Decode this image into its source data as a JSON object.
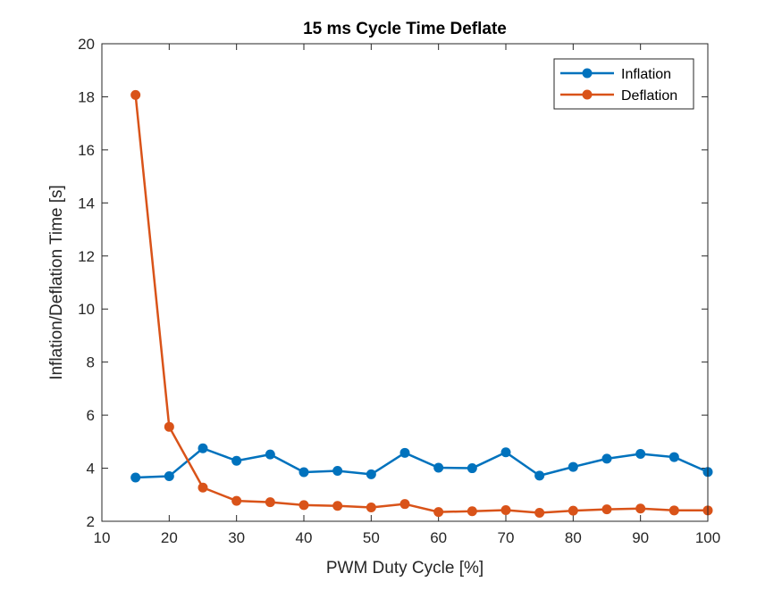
{
  "chart_data": {
    "type": "line",
    "title": "15 ms Cycle Time Deflate",
    "xlabel": "PWM Duty Cycle [%]",
    "ylabel": "Inflation/Deflation Time [s]",
    "xlim": [
      10,
      100
    ],
    "ylim": [
      2,
      20
    ],
    "xticks": [
      10,
      20,
      30,
      40,
      50,
      60,
      70,
      80,
      90,
      100
    ],
    "yticks": [
      2,
      4,
      6,
      8,
      10,
      12,
      14,
      16,
      18,
      20
    ],
    "grid": false,
    "legend_position": "top-right",
    "x": [
      15,
      20,
      25,
      30,
      35,
      40,
      45,
      50,
      55,
      60,
      65,
      70,
      75,
      80,
      85,
      90,
      95,
      100
    ],
    "series": [
      {
        "name": "Inflation",
        "color": "#0072BD",
        "values": [
          3.65,
          3.7,
          4.75,
          4.28,
          4.52,
          3.85,
          3.9,
          3.77,
          4.58,
          4.02,
          4.0,
          4.6,
          3.72,
          4.05,
          4.36,
          4.54,
          4.42,
          3.86
        ]
      },
      {
        "name": "Deflation",
        "color": "#D95319",
        "values": [
          18.07,
          5.56,
          3.27,
          2.77,
          2.72,
          2.61,
          2.58,
          2.52,
          2.65,
          2.35,
          2.38,
          2.42,
          2.32,
          2.4,
          2.45,
          2.48,
          2.41,
          2.41
        ]
      }
    ]
  }
}
